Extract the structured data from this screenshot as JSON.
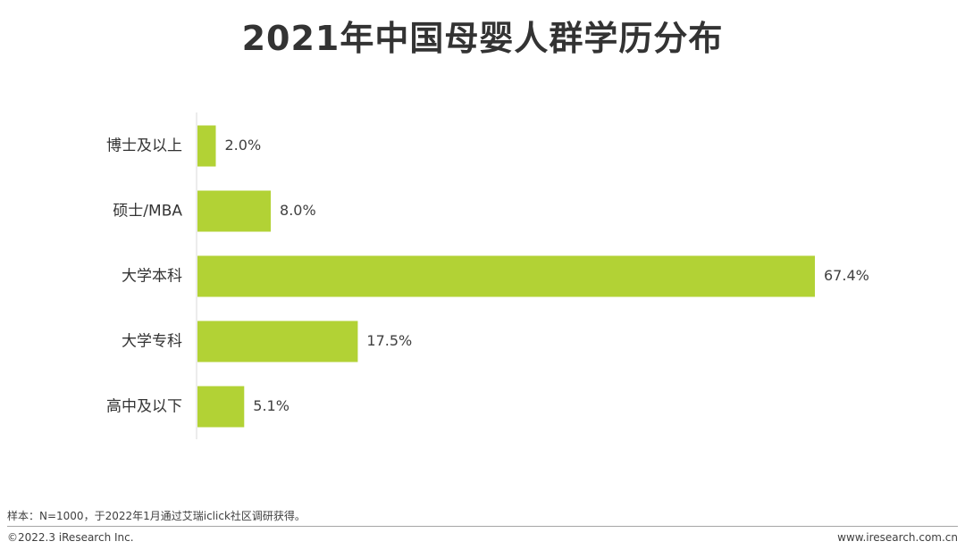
{
  "title": "2021年中国母婴人群学历分布",
  "chart_data": {
    "type": "bar",
    "orientation": "horizontal",
    "title": "2021年中国母婴人群学历分布",
    "categories": [
      "博士及以上",
      "硕士/MBA",
      "大学本科",
      "大学专科",
      "高中及以下"
    ],
    "values": [
      2.0,
      8.0,
      67.4,
      17.5,
      5.1
    ],
    "value_labels": [
      "2.0%",
      "8.0%",
      "67.4%",
      "17.5%",
      "5.1%"
    ],
    "unit": "%",
    "xlim": [
      0,
      70
    ],
    "bar_color": "#b2d235",
    "grid": false,
    "legend": "none"
  },
  "footer": {
    "note": "样本：N=1000，于2022年1月通过艾瑞iclick社区调研获得。",
    "copyright": "©2022.3 iResearch Inc.",
    "website": "www.iresearch.com.cn"
  }
}
